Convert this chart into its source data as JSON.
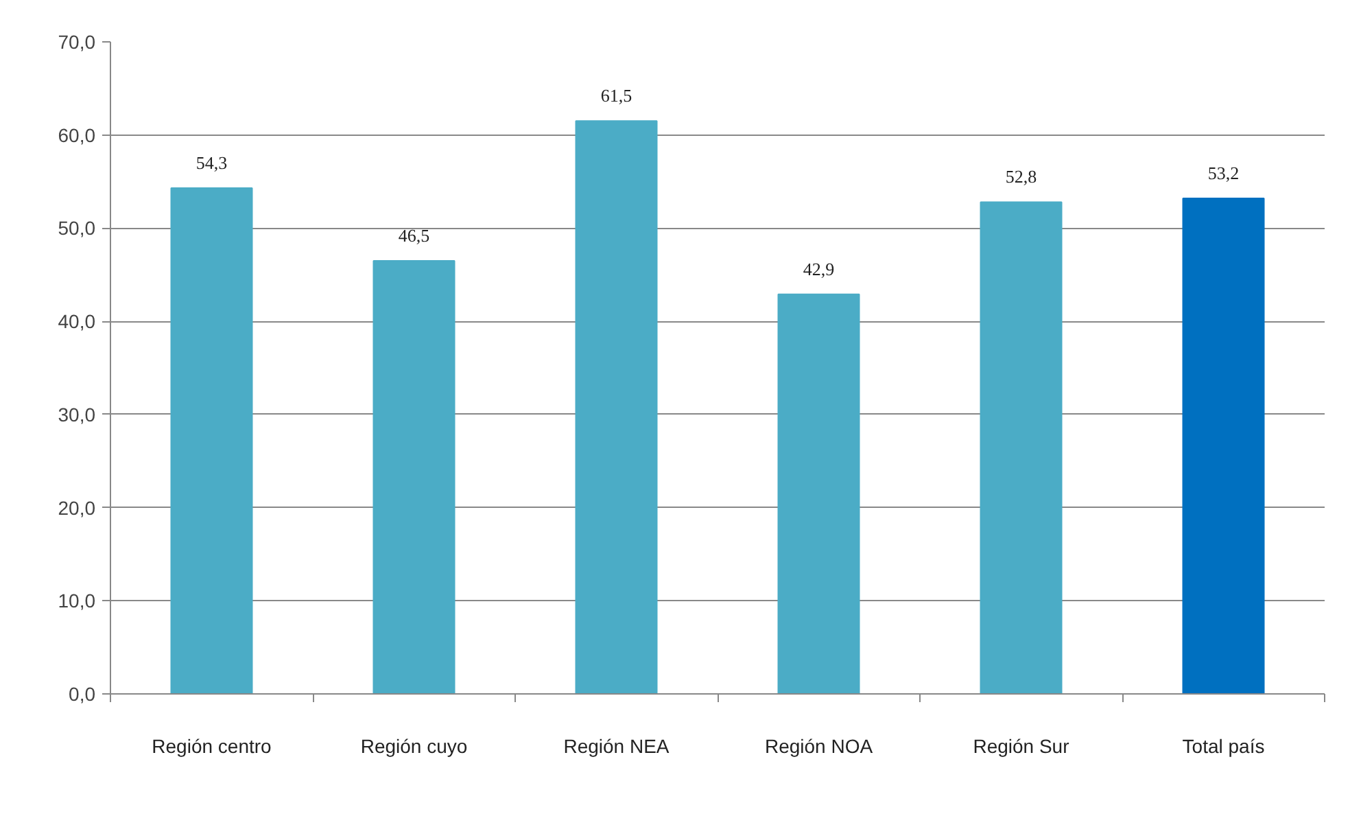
{
  "chart_data": {
    "type": "bar",
    "categories": [
      "Región centro",
      "Región cuyo",
      "Región NEA",
      "Región NOA",
      "Región Sur",
      "Total país"
    ],
    "values": [
      54.3,
      46.5,
      61.5,
      42.9,
      52.8,
      53.2
    ],
    "colors": [
      "#4bacc6",
      "#4bacc6",
      "#4bacc6",
      "#4bacc6",
      "#4bacc6",
      "#0070c0"
    ],
    "value_labels": [
      "54,3",
      "46,5",
      "61,5",
      "42,9",
      "52,8",
      "53,2"
    ],
    "ylim": [
      0,
      70
    ],
    "yticks": [
      {
        "value": 0,
        "label": "0,0"
      },
      {
        "value": 10,
        "label": "10,0"
      },
      {
        "value": 20,
        "label": "20,0"
      },
      {
        "value": 30,
        "label": "30,0"
      },
      {
        "value": 40,
        "label": "40,0"
      },
      {
        "value": 50,
        "label": "50,0"
      },
      {
        "value": 60,
        "label": "60,0"
      },
      {
        "value": 70,
        "label": "70,0"
      }
    ],
    "grid": "y"
  }
}
